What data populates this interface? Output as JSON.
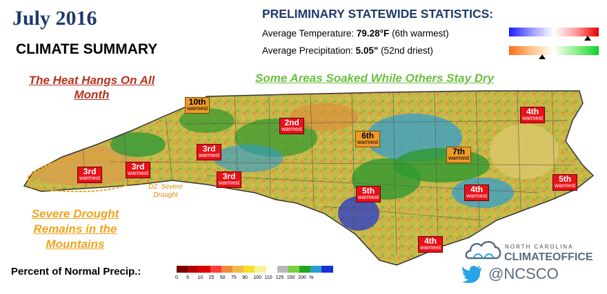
{
  "title": "July 2016",
  "subtitle": "CLIMATE SUMMARY",
  "stats": {
    "heading": "PRELIMINARY STATEWIDE STATISTICS:",
    "temperature": {
      "label": "Average Temperature:",
      "value": "79.28°F",
      "note": "(6th warmest)",
      "gauge_level": 0.88
    },
    "precipitation": {
      "label": "Average Precipitation:",
      "value": "5.05\"",
      "note": "(52nd driest)",
      "gauge_level": 0.37
    }
  },
  "headlines": {
    "heat": "The Heat Hangs On All Month",
    "soaked": "Some Areas Soaked While Others Stay Dry",
    "drought": "Severe Drought Remains in the Mountains",
    "d2": "D2: Severe Drought"
  },
  "rank_word": "warmest",
  "ranks": [
    {
      "name": "rank-label-boone",
      "rank": "10th",
      "color": "orange"
    },
    {
      "name": "rank-label-piedmont-north",
      "rank": "2nd",
      "color": "red"
    },
    {
      "name": "rank-label-foothills",
      "rank": "3rd",
      "color": "red"
    },
    {
      "name": "rank-label-far-west",
      "rank": "3rd",
      "color": "red"
    },
    {
      "name": "rank-label-southwest",
      "rank": "3rd",
      "color": "red"
    },
    {
      "name": "rank-label-charlotte",
      "rank": "3rd",
      "color": "red"
    },
    {
      "name": "rank-label-raleigh",
      "rank": "6th",
      "color": "orange"
    },
    {
      "name": "rank-label-greenville",
      "rank": "7th",
      "color": "orange"
    },
    {
      "name": "rank-label-northeast",
      "rank": "4th",
      "color": "red"
    },
    {
      "name": "rank-label-sandhills",
      "rank": "5th",
      "color": "red"
    },
    {
      "name": "rank-label-new-bern",
      "rank": "4th",
      "color": "red"
    },
    {
      "name": "rank-label-outer-banks",
      "rank": "5th",
      "color": "red"
    },
    {
      "name": "rank-label-wilmington",
      "rank": "4th",
      "color": "red"
    }
  ],
  "legend": {
    "label": "Percent of Normal Precip.:",
    "ticks": [
      "0",
      "5",
      "10",
      "25",
      "50",
      "75",
      "90",
      "100",
      "110",
      "125",
      "150",
      "200",
      "%"
    ],
    "colors": [
      "#7a0000",
      "#b30000",
      "#e00000",
      "#ff3b3b",
      "#f08a3a",
      "#f5b94a",
      "#f2e02a",
      "#f7f29a",
      "#ffffff",
      "#b8b8b8",
      "#7ad13a",
      "#1ea81e",
      "#2a9dd6",
      "#1a2fd6"
    ]
  },
  "branding": {
    "org_top": "NORTH CAROLINA",
    "org_main": "CLIMATEOFFICE",
    "twitter": "@NCSCO",
    "twitter_icon": "twitter-bird-icon",
    "logo_icon": "cloud-logo-icon"
  },
  "colors": {
    "title": "#1f3a6b",
    "heat": "#b3331f",
    "soaked": "#6abf3c",
    "drought": "#f2a31b"
  }
}
